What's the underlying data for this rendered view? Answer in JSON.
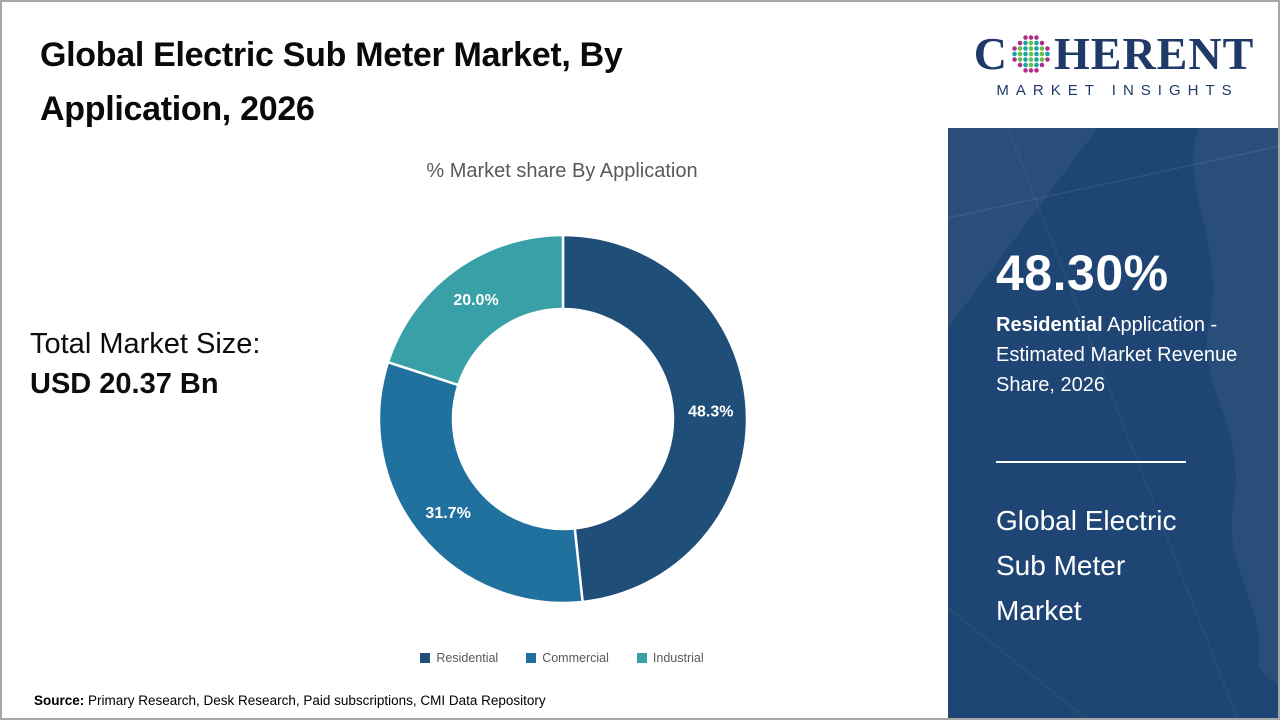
{
  "page": {
    "title": "Global Electric Sub Meter Market, By\nApplication, 2026",
    "source_label": "Source:",
    "source_text": " Primary Research, Desk Research, Paid subscriptions, CMI Data Repository"
  },
  "total": {
    "label": "Total Market Size:",
    "value": "USD 20.37 Bn"
  },
  "chart_data": {
    "type": "pie",
    "donut": true,
    "title": "% Market share By Application",
    "categories": [
      "Residential",
      "Commercial",
      "Industrial"
    ],
    "values": [
      48.3,
      31.7,
      20.0
    ],
    "data_labels": [
      "48.3%",
      "31.7%",
      "20.0%"
    ],
    "colors": [
      "#1f4e79",
      "#21719f",
      "#3aa0a7"
    ],
    "label_color": "#ffffff",
    "legend_position": "bottom",
    "start_angle_deg": 0,
    "direction": "clockwise"
  },
  "sidebar": {
    "bg_color": "#1e4573",
    "stat_value": "48.30%",
    "stat_desc_bold": "Residential",
    "stat_desc_rest": " Application - Estimated Market Revenue Share, 2026",
    "market_name": "Global Electric Sub Meter Market"
  },
  "logo": {
    "word_start": "C",
    "word_end": "HERENT",
    "subtitle": "MARKET INSIGHTS",
    "navy": "#1f3a68",
    "globe_icon": "coherent-globe-icon"
  }
}
